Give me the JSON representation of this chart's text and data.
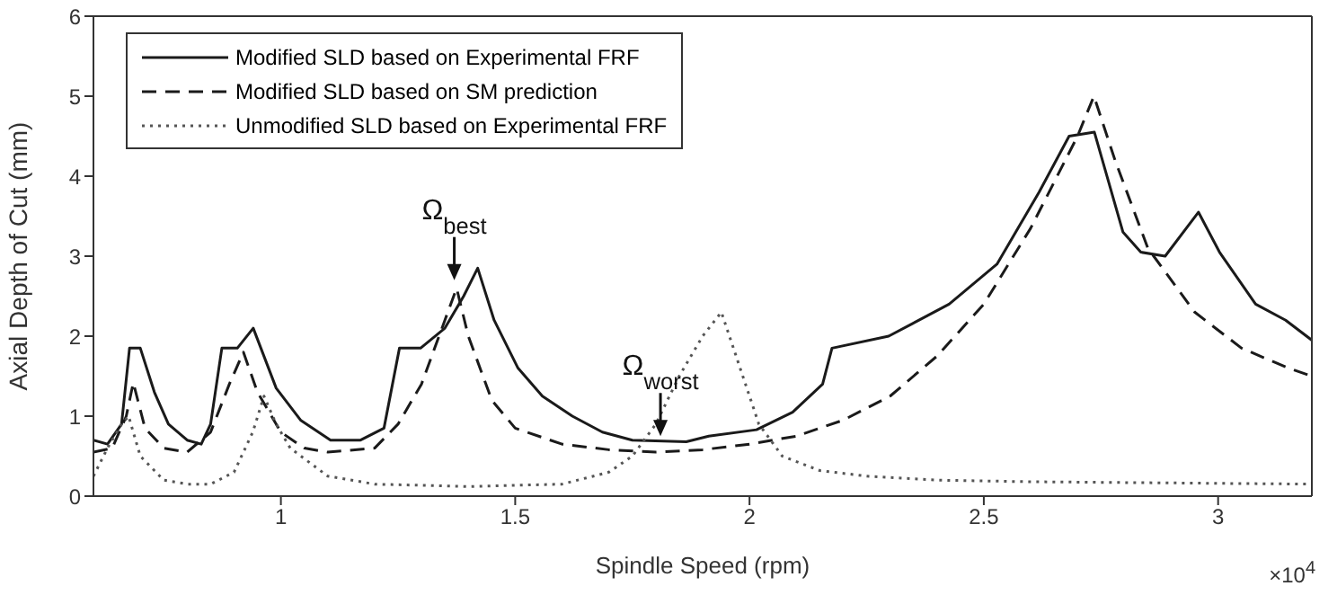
{
  "chart_data": {
    "type": "line",
    "xlabel": "Spindle Speed (rpm)",
    "ylabel": "Axial Depth of Cut (mm)",
    "xlim": [
      0.6,
      3.2
    ],
    "xticks": [
      1,
      1.5,
      2,
      2.5,
      3
    ],
    "ylim": [
      0,
      6
    ],
    "yticks": [
      0,
      1,
      2,
      3,
      4,
      5,
      6
    ],
    "legend": "top left",
    "marker": "none",
    "annotations": [
      {
        "text": "Ω$_{best}$",
        "x": 1.37,
        "y": 2.7
      },
      {
        "text": "Ω$_{worst}$",
        "x": 1.81,
        "y": 0.75
      },
      "×10$^{4}$"
    ],
    "series": [
      {
        "name": "Modified SLD based on Experimental FRF",
        "color": "#1a1a1a",
        "line_style": "solid",
        "x": [
          0.6,
          0.63,
          0.66,
          0.677,
          0.7,
          0.73,
          0.76,
          0.8,
          0.83,
          0.85,
          0.874,
          0.907,
          0.941,
          0.99,
          1.042,
          1.106,
          1.17,
          1.22,
          1.253,
          1.298,
          1.35,
          1.39,
          1.42,
          1.455,
          1.506,
          1.558,
          1.622,
          1.686,
          1.75,
          1.865,
          1.913,
          2.015,
          2.092,
          2.156,
          2.176,
          2.297,
          2.426,
          2.528,
          2.618,
          2.682,
          2.736,
          2.797,
          2.835,
          2.887,
          2.958,
          3.003,
          3.08,
          3.144,
          3.2
        ],
        "values": [
          0.7,
          0.65,
          0.9,
          1.85,
          1.85,
          1.3,
          0.9,
          0.7,
          0.65,
          0.9,
          1.85,
          1.85,
          2.1,
          1.35,
          0.95,
          0.7,
          0.7,
          0.85,
          1.85,
          1.85,
          2.1,
          2.5,
          2.85,
          2.2,
          1.6,
          1.25,
          1.0,
          0.8,
          0.7,
          0.68,
          0.75,
          0.83,
          1.05,
          1.4,
          1.85,
          2.0,
          2.4,
          2.9,
          3.8,
          4.5,
          4.55,
          3.3,
          3.05,
          3.0,
          3.55,
          3.05,
          2.4,
          2.2,
          1.95
        ]
      },
      {
        "name": "Modified SLD based on SM prediction",
        "color": "#1a1a1a",
        "line_style": "dashed",
        "x": [
          0.6,
          0.64,
          0.67,
          0.685,
          0.71,
          0.75,
          0.8,
          0.85,
          0.89,
          0.92,
          0.95,
          1.0,
          1.05,
          1.1,
          1.2,
          1.25,
          1.3,
          1.35,
          1.375,
          1.4,
          1.45,
          1.5,
          1.6,
          1.7,
          1.8,
          1.9,
          2.0,
          2.1,
          2.2,
          2.3,
          2.4,
          2.5,
          2.6,
          2.7,
          2.735,
          2.78,
          2.85,
          2.95,
          3.05,
          3.15,
          3.2
        ],
        "values": [
          0.55,
          0.6,
          1.0,
          1.42,
          0.85,
          0.6,
          0.55,
          0.8,
          1.4,
          1.8,
          1.3,
          0.8,
          0.6,
          0.55,
          0.6,
          0.9,
          1.4,
          2.2,
          2.6,
          2.0,
          1.2,
          0.85,
          0.65,
          0.58,
          0.55,
          0.58,
          0.65,
          0.75,
          0.95,
          1.25,
          1.75,
          2.4,
          3.35,
          4.5,
          5.0,
          4.2,
          3.1,
          2.3,
          1.85,
          1.6,
          1.5
        ]
      },
      {
        "name": "Unmodified SLD based on Experimental FRF",
        "color": "#555555",
        "line_style": "dotted",
        "x": [
          0.6,
          0.63,
          0.66,
          0.675,
          0.7,
          0.75,
          0.8,
          0.85,
          0.9,
          0.94,
          0.964,
          0.99,
          1.02,
          1.1,
          1.2,
          1.4,
          1.6,
          1.7,
          1.75,
          1.8,
          1.85,
          1.9,
          1.94,
          1.98,
          2.02,
          2.07,
          2.15,
          2.25,
          2.4,
          2.6,
          2.8,
          3.2
        ],
        "values": [
          0.25,
          0.6,
          0.9,
          1.0,
          0.5,
          0.2,
          0.15,
          0.15,
          0.3,
          0.8,
          1.25,
          0.9,
          0.6,
          0.25,
          0.15,
          0.12,
          0.15,
          0.3,
          0.5,
          0.9,
          1.5,
          2.0,
          2.3,
          1.6,
          0.9,
          0.5,
          0.32,
          0.25,
          0.2,
          0.18,
          0.17,
          0.15
        ]
      }
    ]
  }
}
